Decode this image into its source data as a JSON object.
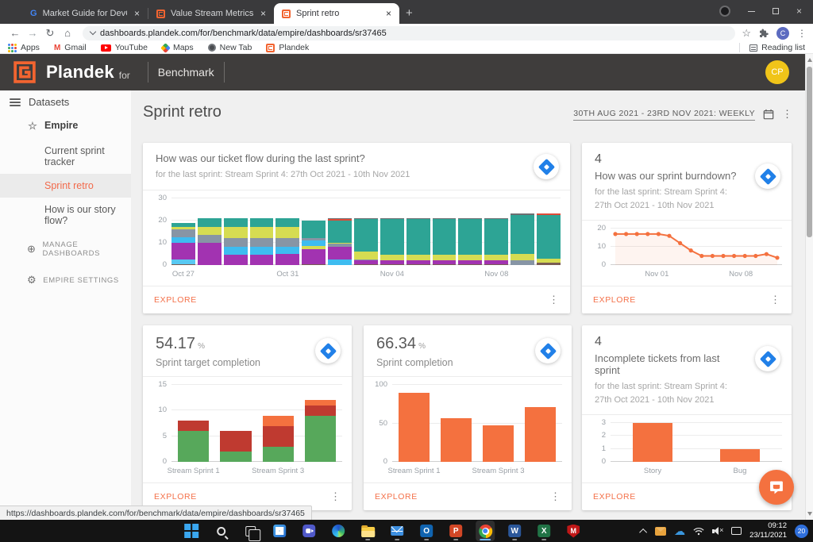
{
  "browser": {
    "tabs": [
      {
        "label": "Market Guide for DevOps Value S",
        "icon": "google-favicon"
      },
      {
        "label": "Value Stream Metrics Today - Pla",
        "icon": "plandek-favicon"
      },
      {
        "label": "Sprint retro",
        "icon": "plandek-favicon"
      }
    ],
    "url": "dashboards.plandek.com/for/benchmark/data/empire/dashboards/sr37465",
    "bookmarks": [
      "Apps",
      "Gmail",
      "YouTube",
      "Maps",
      "New Tab",
      "Plandek"
    ],
    "reading_list": "Reading list",
    "avatar_letter": "C"
  },
  "app_header": {
    "brand": "Plandek",
    "for_label": "for",
    "workspace": "Benchmark",
    "avatar": "CP"
  },
  "sidebar": {
    "datasets_label": "Datasets",
    "items": [
      {
        "label": "Empire"
      },
      {
        "label": "Current sprint tracker"
      },
      {
        "label": "Sprint retro",
        "active": true
      },
      {
        "label": "How is our story flow?"
      }
    ],
    "manage": "MANAGE DASHBOARDS",
    "settings": "EMPIRE SETTINGS"
  },
  "page": {
    "title": "Sprint retro",
    "date_range": "30TH AUG 2021 - 23RD NOV 2021: WEEKLY"
  },
  "cards": [
    {
      "title": "How was our ticket flow during the last sprint?",
      "subtitle": "for the last sprint: Stream Sprint 4: 27th Oct 2021 - 10th Nov 2021",
      "explore": "EXPLORE"
    },
    {
      "number": "4",
      "title": "How was our sprint burndown?",
      "subtitle": "for the last sprint: Stream Sprint 4: 27th Oct 2021 - 10th Nov 2021",
      "explore": "EXPLORE"
    },
    {
      "value": "54.17",
      "unit": "%",
      "title": "Sprint target completion",
      "explore": "EXPLORE"
    },
    {
      "value": "66.34",
      "unit": "%",
      "title": "Sprint completion",
      "explore": "EXPLORE"
    },
    {
      "number": "4",
      "title": "Incomplete tickets from last sprint",
      "subtitle": "for the last sprint: Stream Sprint 4: 27th Oct 2021 - 10th Nov 2021",
      "explore": "EXPLORE"
    }
  ],
  "chart_data": [
    {
      "type": "stacked-bar",
      "title": "How was our ticket flow during the last sprint?",
      "ylim": [
        0,
        30
      ],
      "yticks": [
        0,
        10,
        20,
        30
      ],
      "gap": 3,
      "palette": {
        "teal": "#2da495",
        "yellow": "#d6dc52",
        "gray": "#8795a5",
        "blue": "#3ebcf0",
        "purple": "#a233b1",
        "lightblue": "#59c8f2",
        "brown": "#7a5c52",
        "red": "#df4b38",
        "dgray": "#6d6f72"
      },
      "bars": [
        [
          [
            "brown",
            0.5
          ],
          [
            "lightblue",
            2
          ],
          [
            "purple",
            7.5
          ],
          [
            "blue",
            2.5
          ],
          [
            "gray",
            3.5
          ],
          [
            "yellow",
            1
          ],
          [
            "teal",
            2
          ]
        ],
        [
          [
            "purple",
            4
          ],
          [
            "purple",
            6
          ],
          [
            "gray",
            3.5
          ],
          [
            "yellow",
            3.5
          ],
          [
            "teal",
            4
          ]
        ],
        [
          [
            "purple",
            4.5
          ],
          [
            "blue",
            3.5
          ],
          [
            "gray",
            4
          ],
          [
            "yellow",
            5
          ],
          [
            "teal",
            4
          ]
        ],
        [
          [
            "purple",
            4.5
          ],
          [
            "blue",
            3.5
          ],
          [
            "gray",
            4
          ],
          [
            "yellow",
            5
          ],
          [
            "teal",
            4
          ]
        ],
        [
          [
            "purple",
            5
          ],
          [
            "blue",
            3
          ],
          [
            "gray",
            4
          ],
          [
            "yellow",
            5
          ],
          [
            "teal",
            4
          ]
        ],
        [
          [
            "brown",
            0.5
          ],
          [
            "purple",
            3
          ],
          [
            "purple",
            3.5
          ],
          [
            "yellow",
            1.5
          ],
          [
            "blue",
            2.5
          ],
          [
            "gray",
            1
          ],
          [
            "teal",
            8
          ]
        ],
        [
          [
            "blue",
            2.5
          ],
          [
            "purple",
            1
          ],
          [
            "purple",
            4.5
          ],
          [
            "gray",
            1.5
          ],
          [
            "yellow",
            0.5
          ],
          [
            "teal",
            10
          ],
          [
            "red",
            0.6
          ],
          [
            "dgray",
            0.4
          ]
        ],
        [
          [
            "brown",
            0.4
          ],
          [
            "purple",
            1.6
          ],
          [
            "gray",
            0.5
          ],
          [
            "yellow",
            3.5
          ],
          [
            "teal",
            14.5
          ],
          [
            "dgray",
            0.5
          ]
        ],
        [
          [
            "brown",
            0.4
          ],
          [
            "purple",
            1.6
          ],
          [
            "yellow",
            2.5
          ],
          [
            "teal",
            16
          ],
          [
            "dgray",
            0.5
          ]
        ],
        [
          [
            "brown",
            0.4
          ],
          [
            "purple",
            1.6
          ],
          [
            "yellow",
            2.5
          ],
          [
            "teal",
            16
          ],
          [
            "dgray",
            0.5
          ]
        ],
        [
          [
            "brown",
            0.4
          ],
          [
            "purple",
            1.6
          ],
          [
            "yellow",
            2.5
          ],
          [
            "teal",
            16
          ],
          [
            "dgray",
            0.5
          ]
        ],
        [
          [
            "brown",
            0.4
          ],
          [
            "purple",
            1.6
          ],
          [
            "yellow",
            2.5
          ],
          [
            "teal",
            16
          ],
          [
            "dgray",
            0.5
          ]
        ],
        [
          [
            "brown",
            0.4
          ],
          [
            "purple",
            1.6
          ],
          [
            "yellow",
            2.5
          ],
          [
            "teal",
            16
          ],
          [
            "dgray",
            0.5
          ]
        ],
        [
          [
            "gray",
            2
          ],
          [
            "yellow",
            3
          ],
          [
            "teal",
            17.5
          ],
          [
            "dgray",
            0.5
          ]
        ],
        [
          [
            "brown",
            1
          ],
          [
            "yellow",
            2
          ],
          [
            "teal",
            19.4
          ],
          [
            "red",
            0.6
          ]
        ]
      ],
      "xticks": [
        {
          "i": 0,
          "label": "Oct 27"
        },
        {
          "i": 4,
          "label": "Oct 31"
        },
        {
          "i": 8,
          "label": "Nov 04"
        },
        {
          "i": 12,
          "label": "Nov 08"
        }
      ]
    },
    {
      "type": "line",
      "title": "How was our sprint burndown?",
      "ylim": [
        0,
        20
      ],
      "yticks": [
        0,
        10,
        20
      ],
      "color": "#f4713f",
      "values": [
        17,
        17,
        17,
        17,
        17,
        16,
        12,
        8,
        5,
        5,
        5,
        5,
        5,
        5,
        6,
        4
      ],
      "xticks": [
        {
          "pct": 27,
          "label": "Nov 01"
        },
        {
          "pct": 76,
          "label": "Nov 08"
        }
      ]
    },
    {
      "type": "stacked-bar",
      "title": "Sprint target completion",
      "ylim": [
        0,
        15
      ],
      "yticks": [
        0,
        5,
        10,
        15
      ],
      "gap": 14,
      "padX": 8,
      "palette": {
        "green": "#57a85b",
        "red": "#bf3a30",
        "orange": "#f4713f"
      },
      "bars": [
        [
          [
            "green",
            6
          ],
          [
            "red",
            2
          ]
        ],
        [
          [
            "green",
            2
          ],
          [
            "red",
            4
          ]
        ],
        [
          [
            "green",
            3
          ],
          [
            "red",
            4
          ],
          [
            "orange",
            2
          ]
        ],
        [
          [
            "green",
            9
          ],
          [
            "red",
            2
          ],
          [
            "orange",
            1
          ]
        ]
      ],
      "xticks": [
        {
          "i": 0,
          "label": "Stream Sprint 1"
        },
        {
          "i": 2,
          "label": "Stream Sprint 3"
        }
      ]
    },
    {
      "type": "bar",
      "title": "Sprint completion",
      "ylim": [
        0,
        100
      ],
      "yticks": [
        0,
        50,
        100
      ],
      "gap": 14,
      "padX": 8,
      "color": "#f4713f",
      "values": [
        90,
        57,
        47,
        71
      ],
      "xticks": [
        {
          "i": 0,
          "label": "Stream Sprint 1"
        },
        {
          "i": 2,
          "label": "Stream Sprint 3"
        }
      ]
    },
    {
      "type": "bar",
      "title": "Incomplete tickets from last sprint",
      "ylim": [
        0,
        3
      ],
      "yticks": [
        0,
        1,
        2,
        3
      ],
      "gap": 60,
      "padX": 28,
      "color": "#f4713f",
      "values": [
        3,
        1
      ],
      "xticks": [
        {
          "i": 0,
          "label": "Story"
        },
        {
          "i": 1,
          "label": "Bug"
        }
      ]
    }
  ],
  "statusbar": {
    "url": "https://dashboards.plandek.com/for/benchmark/data/empire/dashboards/sr37465"
  },
  "taskbar": {
    "time": "09:12",
    "date": "23/11/2021",
    "badge": "20"
  }
}
